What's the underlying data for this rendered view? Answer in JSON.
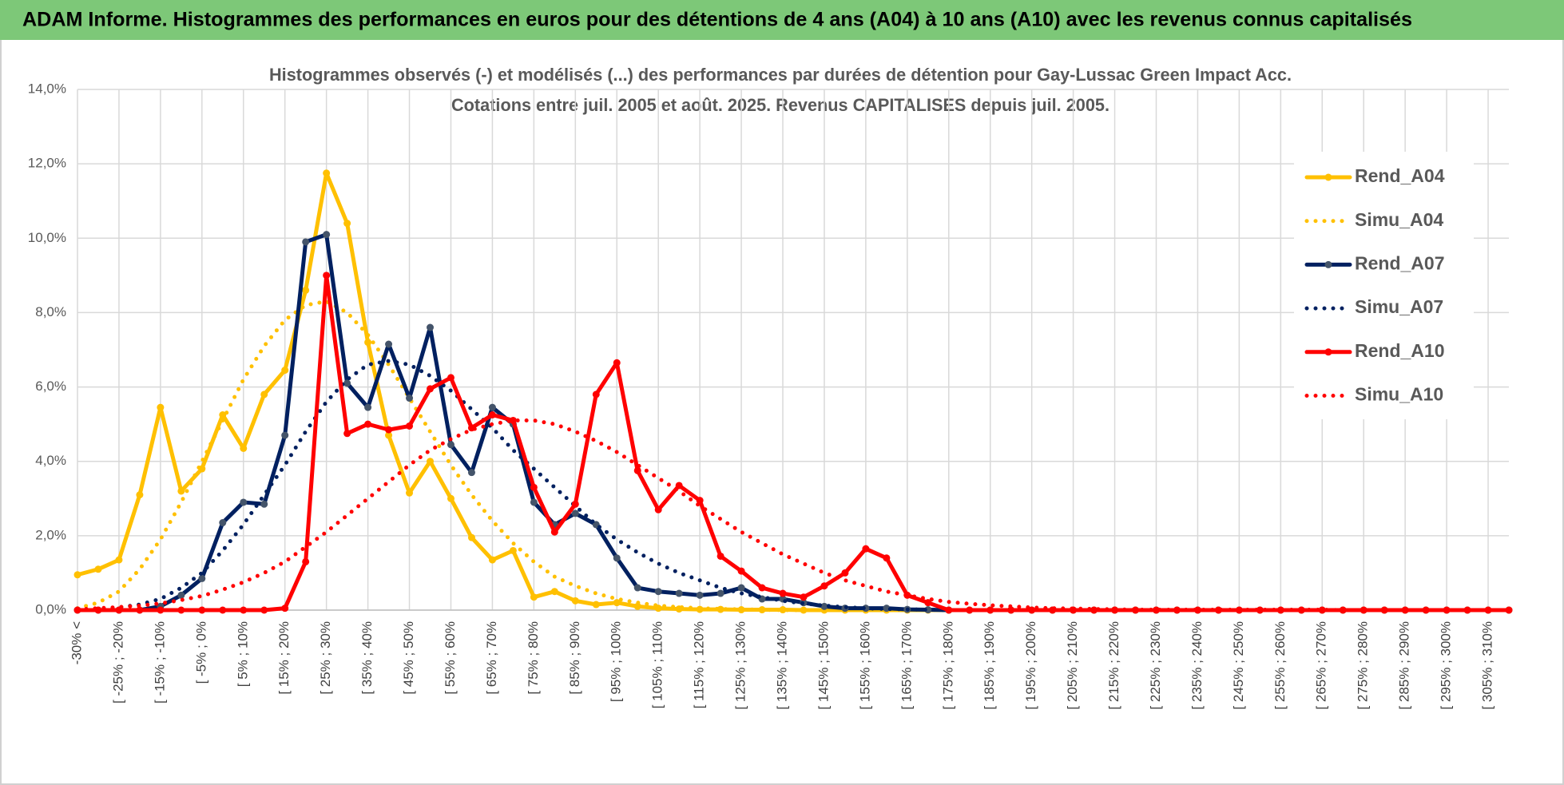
{
  "banner": "ADAM Informe. Histogrammes des performances en euros pour des détentions de 4 ans (A04) à 10 ans (A10) avec les revenus connus capitalisés",
  "chart_data": {
    "type": "line",
    "title": "Histogrammes observés (-) et modélisés (...)  des performances par durées de détention pour Gay-Lussac Green Impact Acc.",
    "subtitle": "Cotations entre juil. 2005 et août. 2025. Revenus CAPITALISES depuis juil. 2005.",
    "categories": [
      "-30% <",
      null,
      "[ -25% ; -20%",
      null,
      "[ -15% ; -10%",
      null,
      "[ -5% ; 0%",
      null,
      "[ 5% ; 10%",
      null,
      "[ 15% ; 20%",
      null,
      "[ 25% ; 30%",
      null,
      "[ 35% ; 40%",
      null,
      "[ 45% ; 50%",
      null,
      "[ 55% ; 60%",
      null,
      "[ 65% ; 70%",
      null,
      "[ 75% ; 80%",
      null,
      "[ 85% ; 90%",
      null,
      "[ 95% ; 100%",
      null,
      "[ 105% ; 110%",
      null,
      "[ 115% ; 120%",
      null,
      "[ 125% ; 130%",
      null,
      "[ 135% ; 140%",
      null,
      "[ 145% ; 150%",
      null,
      "[ 155% ; 160%",
      null,
      "[ 165% ; 170%",
      null,
      "[ 175% ; 180%",
      null,
      "[ 185% ; 190%",
      null,
      "[ 195% ; 200%",
      null,
      "[ 205% ; 210%",
      null,
      "[ 215% ; 220%",
      null,
      "[ 225% ; 230%",
      null,
      "[ 235% ; 240%",
      null,
      "[ 245% ; 250%",
      null,
      "[ 255% ; 260%",
      null,
      "[ 265% ; 270%",
      null,
      "[ 275% ; 280%",
      null,
      "[ 285% ; 290%",
      null,
      "[ 295% ; 300%",
      null,
      "[ 305% ; 310%",
      null
    ],
    "series": [
      {
        "name": "Rend_A04",
        "color": "#FFC000",
        "style": "solid",
        "marker": "#FFC000",
        "values": [
          0.95,
          1.1,
          1.35,
          3.1,
          5.45,
          3.2,
          3.8,
          5.25,
          4.35,
          5.8,
          6.45,
          8.6,
          11.75,
          10.4,
          7.2,
          4.7,
          3.15,
          4.0,
          3.0,
          1.95,
          1.35,
          1.6,
          0.35,
          0.5,
          0.25,
          0.15,
          0.2,
          0.1,
          0.05,
          0.03,
          0.02,
          0.02,
          0.01,
          0.01,
          0.01,
          0,
          0,
          0,
          0,
          0,
          0,
          0,
          0,
          0,
          0,
          0,
          0,
          0,
          0,
          0,
          0,
          0,
          0,
          0,
          0,
          0,
          0,
          0,
          0,
          0,
          0,
          0,
          0,
          0,
          0,
          0,
          0,
          0,
          0,
          0
        ]
      },
      {
        "name": "Simu_A04",
        "color": "#FFC000",
        "style": "dotted",
        "values": [
          0.05,
          0.2,
          0.5,
          1.1,
          1.9,
          2.9,
          4.0,
          5.1,
          6.2,
          7.1,
          7.8,
          8.2,
          8.3,
          8.0,
          7.4,
          6.6,
          5.7,
          4.8,
          3.9,
          3.1,
          2.4,
          1.8,
          1.3,
          0.9,
          0.65,
          0.45,
          0.3,
          0.2,
          0.12,
          0.08,
          0.05,
          0.03,
          0.02,
          0.01,
          0,
          0,
          0,
          0,
          0,
          0,
          0,
          0,
          0,
          0,
          0,
          0,
          0,
          0,
          0,
          0,
          0,
          0,
          0,
          0,
          0,
          0,
          0,
          0,
          0,
          0,
          0,
          0,
          0,
          0,
          0,
          0,
          0,
          0,
          0,
          0
        ]
      },
      {
        "name": "Rend_A07",
        "color": "#002060",
        "style": "solid",
        "marker": "#44546A",
        "values": [
          0,
          0,
          0,
          0,
          0.1,
          0.4,
          0.85,
          2.35,
          2.9,
          2.85,
          4.7,
          9.9,
          10.1,
          6.1,
          5.45,
          7.15,
          5.7,
          7.6,
          4.45,
          3.7,
          5.45,
          5.0,
          2.9,
          2.3,
          2.6,
          2.3,
          1.4,
          0.6,
          0.5,
          0.45,
          0.4,
          0.45,
          0.6,
          0.3,
          0.3,
          0.2,
          0.1,
          0.05,
          0.05,
          0.05,
          0.02,
          0.01,
          0,
          0,
          0,
          0,
          0,
          0,
          0,
          0,
          0,
          0,
          0,
          0,
          0,
          0,
          0,
          0,
          0,
          0,
          0,
          0,
          0,
          0,
          0,
          0,
          0,
          0,
          0,
          0
        ]
      },
      {
        "name": "Simu_A07",
        "color": "#002060",
        "style": "dotted",
        "values": [
          0,
          0.02,
          0.07,
          0.15,
          0.3,
          0.6,
          1.0,
          1.6,
          2.3,
          3.1,
          3.9,
          4.8,
          5.6,
          6.2,
          6.6,
          6.7,
          6.6,
          6.3,
          5.9,
          5.4,
          4.9,
          4.3,
          3.8,
          3.3,
          2.8,
          2.3,
          1.9,
          1.55,
          1.25,
          1.0,
          0.8,
          0.6,
          0.45,
          0.35,
          0.25,
          0.18,
          0.12,
          0.08,
          0.05,
          0.03,
          0.02,
          0.01,
          0,
          0,
          0,
          0,
          0,
          0,
          0,
          0,
          0,
          0,
          0,
          0,
          0,
          0,
          0,
          0,
          0,
          0,
          0,
          0,
          0,
          0,
          0,
          0,
          0,
          0,
          0,
          0
        ]
      },
      {
        "name": "Rend_A10",
        "color": "#FF0000",
        "style": "solid",
        "marker": "#FF0000",
        "values": [
          0,
          0,
          0,
          0,
          0,
          0,
          0,
          0,
          0,
          0,
          0.05,
          1.3,
          9.0,
          4.75,
          5.0,
          4.85,
          4.95,
          5.95,
          6.25,
          4.9,
          5.25,
          5.1,
          3.3,
          2.1,
          2.85,
          5.8,
          6.65,
          3.75,
          2.7,
          3.35,
          2.95,
          1.45,
          1.05,
          0.6,
          0.45,
          0.35,
          0.65,
          1.0,
          1.65,
          1.4,
          0.4,
          0.2,
          0,
          0,
          0,
          0,
          0,
          0,
          0,
          0,
          0,
          0,
          0,
          0,
          0,
          0,
          0,
          0,
          0,
          0,
          0,
          0,
          0,
          0,
          0,
          0,
          0,
          0,
          0,
          0
        ]
      },
      {
        "name": "Simu_A10",
        "color": "#FF0000",
        "style": "dotted",
        "values": [
          0.02,
          0.05,
          0.08,
          0.12,
          0.18,
          0.27,
          0.38,
          0.55,
          0.75,
          1.0,
          1.3,
          1.7,
          2.1,
          2.55,
          3.0,
          3.45,
          3.9,
          4.3,
          4.6,
          4.85,
          5.0,
          5.1,
          5.1,
          5.0,
          4.8,
          4.55,
          4.25,
          3.9,
          3.55,
          3.2,
          2.8,
          2.45,
          2.1,
          1.8,
          1.5,
          1.25,
          1.0,
          0.8,
          0.65,
          0.5,
          0.4,
          0.3,
          0.22,
          0.17,
          0.13,
          0.1,
          0.07,
          0.05,
          0.04,
          0.03,
          0.02,
          0.01,
          0.01,
          0.01,
          0.01,
          0.01,
          0.01,
          0.01,
          0.01,
          0.01,
          0.01,
          0,
          0,
          0,
          0,
          0,
          0,
          0,
          0,
          0
        ]
      }
    ],
    "ylim": [
      0,
      14
    ],
    "yticks": [
      {
        "value": 0,
        "label": "0,0%"
      },
      {
        "value": 2,
        "label": "2,0%"
      },
      {
        "value": 4,
        "label": "4,0%"
      },
      {
        "value": 6,
        "label": "6,0%"
      },
      {
        "value": 8,
        "label": "8,0%"
      },
      {
        "value": 10,
        "label": "10,0%"
      },
      {
        "value": 12,
        "label": "12,0%"
      },
      {
        "value": 14,
        "label": "14,0%"
      }
    ],
    "grid": true,
    "legend": "right"
  }
}
